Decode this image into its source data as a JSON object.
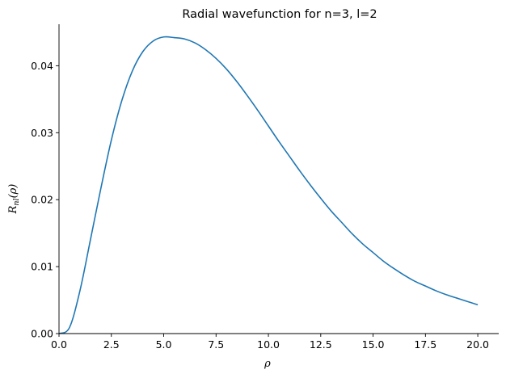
{
  "chart_data": {
    "type": "line",
    "title": "Radial wavefunction for n=3, l=2",
    "xlabel": "ρ",
    "ylabel": {
      "base": "R",
      "subscript": "nl",
      "argument": "(ρ)"
    },
    "xlim": [
      0,
      21
    ],
    "ylim": [
      0,
      0.0462
    ],
    "xticks": [
      0,
      2.5,
      5,
      7.5,
      10,
      12.5,
      15,
      17.5,
      20
    ],
    "xtick_labels": [
      "0.0",
      "2.5",
      "5.0",
      "7.5",
      "10.0",
      "12.5",
      "15.0",
      "17.5",
      "20.0"
    ],
    "yticks": [
      0,
      0.01,
      0.02,
      0.03,
      0.04
    ],
    "ytick_labels": [
      "0.00",
      "0.01",
      "0.02",
      "0.03",
      "0.04"
    ],
    "grid": false,
    "legend": "none",
    "series": [
      {
        "color": "#1f77b4",
        "x": [
          0,
          0.5,
          1,
          1.5,
          2,
          2.5,
          3,
          3.5,
          4,
          4.5,
          5,
          5.5,
          6,
          6.5,
          7,
          7.5,
          8,
          8.5,
          9,
          9.5,
          10,
          10.5,
          11,
          11.5,
          12,
          12.5,
          13,
          13.5,
          14,
          14.5,
          15,
          15.5,
          16,
          16.5,
          17,
          17.5,
          18,
          18.5,
          19,
          19.5,
          20
        ],
        "y": [
          0,
          0.0009,
          0.0064,
          0.014,
          0.0217,
          0.0289,
          0.0348,
          0.0392,
          0.0421,
          0.0437,
          0.0443,
          0.0442,
          0.044,
          0.0434,
          0.0424,
          0.0411,
          0.0395,
          0.0376,
          0.0355,
          0.0333,
          0.031,
          0.0287,
          0.0265,
          0.0243,
          0.0222,
          0.0202,
          0.0183,
          0.0166,
          0.0149,
          0.0134,
          0.0121,
          0.0108,
          0.0097,
          0.0087,
          0.0078,
          0.0071,
          0.0064,
          0.0058,
          0.0053,
          0.0048,
          0.0043
        ]
      }
    ]
  }
}
